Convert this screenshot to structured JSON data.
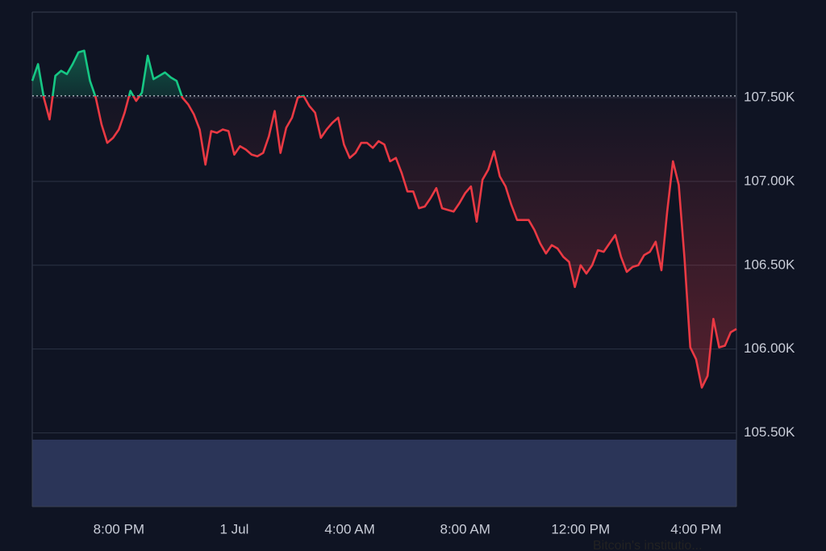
{
  "chart_data": {
    "type": "line",
    "x": [
      17,
      17.2,
      17.4,
      17.6,
      17.8,
      18,
      18.2,
      18.4,
      18.6,
      18.8,
      19,
      19.2,
      19.4,
      19.6,
      19.8,
      20,
      20.2,
      20.4,
      20.6,
      20.8,
      21,
      21.2,
      21.4,
      21.6,
      21.8,
      22,
      22.2,
      22.4,
      22.6,
      22.8,
      23,
      23.2,
      23.4,
      23.6,
      23.8,
      24,
      24.2,
      24.4,
      24.6,
      24.8,
      25,
      25.2,
      25.4,
      25.6,
      25.8,
      26,
      26.2,
      26.4,
      26.6,
      26.8,
      27,
      27.2,
      27.4,
      27.6,
      27.8,
      28,
      28.2,
      28.4,
      28.6,
      28.8,
      29,
      29.2,
      29.4,
      29.6,
      29.8,
      30,
      30.2,
      30.4,
      30.6,
      30.8,
      31,
      31.2,
      31.4,
      31.6,
      31.8,
      32,
      32.2,
      32.4,
      32.6,
      32.8,
      33,
      33.2,
      33.4,
      33.6,
      33.8,
      34,
      34.2,
      34.4,
      34.6,
      34.8,
      35,
      35.2,
      35.4,
      35.6,
      35.8,
      36,
      36.2,
      36.4,
      36.6,
      36.8,
      37,
      37.2,
      37.4,
      37.6,
      37.8,
      38,
      38.2,
      38.4,
      38.6,
      38.8,
      39,
      39.2,
      39.4,
      39.6,
      39.8,
      40,
      40.2,
      40.4,
      40.6,
      40.8,
      41,
      41.2,
      41.4
    ],
    "values": [
      107.6,
      107.7,
      107.5,
      107.37,
      107.63,
      107.66,
      107.64,
      107.7,
      107.77,
      107.78,
      107.6,
      107.5,
      107.34,
      107.23,
      107.26,
      107.31,
      107.41,
      107.54,
      107.48,
      107.53,
      107.75,
      107.61,
      107.63,
      107.65,
      107.62,
      107.6,
      107.5,
      107.46,
      107.4,
      107.31,
      107.1,
      107.3,
      107.29,
      107.31,
      107.3,
      107.16,
      107.21,
      107.19,
      107.16,
      107.15,
      107.17,
      107.27,
      107.42,
      107.17,
      107.32,
      107.38,
      107.5,
      107.51,
      107.45,
      107.41,
      107.26,
      107.31,
      107.35,
      107.38,
      107.22,
      107.14,
      107.17,
      107.23,
      107.23,
      107.2,
      107.24,
      107.22,
      107.12,
      107.14,
      107.05,
      106.94,
      106.94,
      106.84,
      106.85,
      106.9,
      106.96,
      106.84,
      106.83,
      106.82,
      106.87,
      106.93,
      106.97,
      106.76,
      107.01,
      107.07,
      107.18,
      107.03,
      106.97,
      106.86,
      106.77,
      106.77,
      106.77,
      106.71,
      106.63,
      106.57,
      106.62,
      106.6,
      106.55,
      106.52,
      106.37,
      106.5,
      106.45,
      106.5,
      106.59,
      106.58,
      106.63,
      106.68,
      106.55,
      106.46,
      106.49,
      106.5,
      106.56,
      106.58,
      106.64,
      106.47,
      106.82,
      107.12,
      106.98,
      106.54,
      106.01,
      105.94,
      105.77,
      105.84,
      106.18,
      106.01,
      106.02,
      106.1,
      106.12
    ],
    "baseline": 107.51,
    "up_color": "#16c784",
    "down_color": "#ea3943",
    "xlim": [
      17,
      41.4
    ],
    "xticks": [
      {
        "value": 20,
        "label": "8:00 PM"
      },
      {
        "value": 24,
        "label": "1 Jul"
      },
      {
        "value": 28,
        "label": "4:00 AM"
      },
      {
        "value": 32,
        "label": "8:00 AM"
      },
      {
        "value": 36,
        "label": "12:00 PM"
      },
      {
        "value": 40,
        "label": "4:00 PM"
      }
    ],
    "ylim": [
      105.06,
      108.01
    ],
    "yticks": [
      {
        "value": 105.5,
        "label": "105.50K"
      },
      {
        "value": 106,
        "label": "106.00K"
      },
      {
        "value": 106.5,
        "label": "106.50K"
      },
      {
        "value": 107,
        "label": "107.00K"
      },
      {
        "value": 107.5,
        "label": "107.50K"
      }
    ],
    "grid": true,
    "annotation": "Bitcoin's institutio..."
  }
}
